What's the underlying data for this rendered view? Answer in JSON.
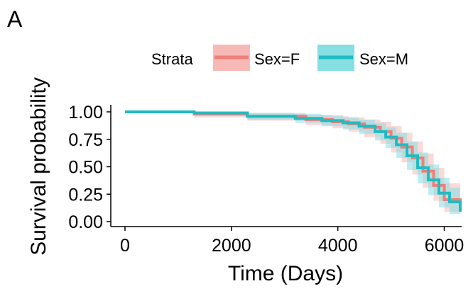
{
  "chart_data": {
    "type": "line",
    "panel_label": "A",
    "title": "",
    "xlabel": "Time (Days)",
    "ylabel": "Survival probability",
    "xlim": [
      0,
      6300
    ],
    "ylim": [
      0,
      1
    ],
    "x_ticks": [
      0,
      2000,
      4000,
      6000
    ],
    "x_tick_labels": [
      "0",
      "2000",
      "4000",
      "6000"
    ],
    "y_ticks": [
      0,
      0.25,
      0.5,
      0.75,
      1.0
    ],
    "y_tick_labels": [
      "0.00",
      "0.25",
      "0.50",
      "0.75",
      "1.00"
    ],
    "grid": false,
    "legend": {
      "title": "Strata",
      "placement": "top"
    },
    "series": [
      {
        "name": "Sex=F",
        "color": "#f07f79",
        "band_color": "#f6b9b6",
        "points": [
          [
            0,
            1.0
          ],
          [
            1300,
            0.98
          ],
          [
            2300,
            0.96
          ],
          [
            3400,
            0.93
          ],
          [
            3900,
            0.91
          ],
          [
            4200,
            0.89
          ],
          [
            4500,
            0.86
          ],
          [
            4800,
            0.82
          ],
          [
            5000,
            0.76
          ],
          [
            5200,
            0.68
          ],
          [
            5400,
            0.58
          ],
          [
            5600,
            0.46
          ],
          [
            5800,
            0.33
          ],
          [
            6000,
            0.2
          ],
          [
            6300,
            0.1
          ]
        ],
        "ci_low": [
          [
            0,
            1.0
          ],
          [
            1300,
            0.95
          ],
          [
            2300,
            0.92
          ],
          [
            3400,
            0.88
          ],
          [
            3900,
            0.85
          ],
          [
            4200,
            0.82
          ],
          [
            4500,
            0.77
          ],
          [
            4800,
            0.71
          ],
          [
            5000,
            0.63
          ],
          [
            5200,
            0.54
          ],
          [
            5400,
            0.43
          ],
          [
            5600,
            0.31
          ],
          [
            5800,
            0.19
          ],
          [
            6000,
            0.09
          ],
          [
            6300,
            0.03
          ]
        ],
        "ci_high": [
          [
            0,
            1.0
          ],
          [
            1300,
            1.0
          ],
          [
            2300,
            0.99
          ],
          [
            3400,
            0.97
          ],
          [
            3900,
            0.96
          ],
          [
            4200,
            0.95
          ],
          [
            4500,
            0.93
          ],
          [
            4800,
            0.91
          ],
          [
            5000,
            0.87
          ],
          [
            5200,
            0.81
          ],
          [
            5400,
            0.73
          ],
          [
            5600,
            0.62
          ],
          [
            5800,
            0.49
          ],
          [
            6000,
            0.35
          ],
          [
            6300,
            0.22
          ]
        ]
      },
      {
        "name": "Sex=M",
        "color": "#1fbcc2",
        "band_color": "#86dfe3",
        "points": [
          [
            0,
            1.0
          ],
          [
            1300,
            0.99
          ],
          [
            2300,
            0.96
          ],
          [
            3200,
            0.94
          ],
          [
            3700,
            0.92
          ],
          [
            4100,
            0.9
          ],
          [
            4400,
            0.87
          ],
          [
            4700,
            0.82
          ],
          [
            4900,
            0.77
          ],
          [
            5100,
            0.7
          ],
          [
            5300,
            0.6
          ],
          [
            5500,
            0.49
          ],
          [
            5700,
            0.38
          ],
          [
            5900,
            0.26
          ],
          [
            6100,
            0.18
          ],
          [
            6300,
            0.09
          ]
        ],
        "ci_low": [
          [
            0,
            1.0
          ],
          [
            1300,
            0.97
          ],
          [
            2300,
            0.93
          ],
          [
            3200,
            0.9
          ],
          [
            3700,
            0.87
          ],
          [
            4100,
            0.84
          ],
          [
            4400,
            0.8
          ],
          [
            4700,
            0.74
          ],
          [
            4900,
            0.67
          ],
          [
            5100,
            0.58
          ],
          [
            5300,
            0.47
          ],
          [
            5500,
            0.35
          ],
          [
            5700,
            0.24
          ],
          [
            5900,
            0.13
          ],
          [
            6100,
            0.07
          ],
          [
            6300,
            0.02
          ]
        ],
        "ci_high": [
          [
            0,
            1.0
          ],
          [
            1300,
            1.0
          ],
          [
            2300,
            0.99
          ],
          [
            3200,
            0.98
          ],
          [
            3700,
            0.97
          ],
          [
            4100,
            0.95
          ],
          [
            4400,
            0.93
          ],
          [
            4700,
            0.9
          ],
          [
            4900,
            0.86
          ],
          [
            5100,
            0.81
          ],
          [
            5300,
            0.73
          ],
          [
            5500,
            0.63
          ],
          [
            5700,
            0.52
          ],
          [
            5900,
            0.4
          ],
          [
            6100,
            0.31
          ],
          [
            6300,
            0.2
          ]
        ]
      }
    ]
  }
}
